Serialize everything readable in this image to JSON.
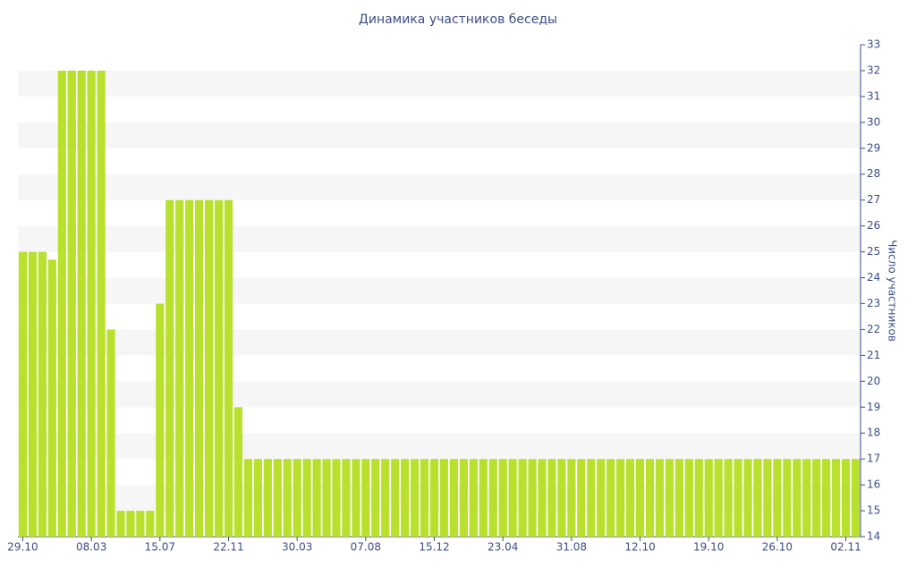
{
  "chart_data": {
    "type": "bar",
    "title": "Динамика участников беседы",
    "y_label": "Число участников",
    "categories": [
      "29.10",
      null,
      null,
      null,
      null,
      null,
      null,
      "08.03",
      null,
      null,
      null,
      null,
      null,
      null,
      "15.07",
      null,
      null,
      null,
      null,
      null,
      null,
      "22.11",
      null,
      null,
      null,
      null,
      null,
      null,
      "30.03",
      null,
      null,
      null,
      null,
      null,
      null,
      "07.08",
      null,
      null,
      null,
      null,
      null,
      null,
      "15.12",
      null,
      null,
      null,
      null,
      null,
      null,
      "23.04",
      null,
      null,
      null,
      null,
      null,
      null,
      "31.08",
      null,
      null,
      null,
      null,
      null,
      null,
      "12.10",
      null,
      null,
      null,
      null,
      null,
      null,
      "19.10",
      null,
      null,
      null,
      null,
      null,
      null,
      "26.10",
      null,
      null,
      null,
      null,
      null,
      null,
      "02.11",
      null
    ],
    "values": [
      25,
      25,
      25,
      24.7,
      32,
      32,
      32,
      32,
      32,
      22,
      15,
      15,
      15,
      15,
      23,
      27,
      27,
      27,
      27,
      27,
      27,
      27,
      19,
      17,
      17,
      17,
      17,
      17,
      17,
      17,
      17,
      17,
      17,
      17,
      17,
      17,
      17,
      17,
      17,
      17,
      17,
      17,
      17,
      17,
      17,
      17,
      17,
      17,
      17,
      17,
      17,
      17,
      17,
      17,
      17,
      17,
      17,
      17,
      17,
      17,
      17,
      17,
      17,
      17,
      17,
      17,
      17,
      17,
      17,
      17,
      17,
      17,
      17,
      17,
      17,
      17,
      17,
      17,
      17,
      17,
      17,
      17,
      17,
      17,
      17,
      17
    ],
    "color": "#b9e02d",
    "ylim": [
      14,
      33
    ],
    "yticks": [
      14,
      15,
      16,
      17,
      18,
      19,
      20,
      21,
      22,
      23,
      24,
      25,
      26,
      27,
      28,
      29,
      30,
      31,
      32,
      33
    ],
    "y_axis_side": "right",
    "grid": "bands"
  }
}
